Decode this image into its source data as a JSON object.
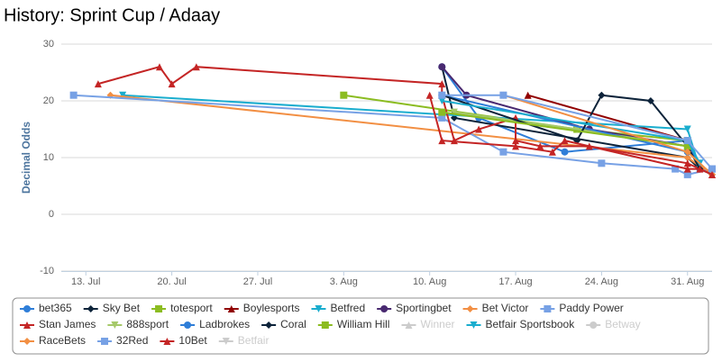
{
  "chart_data": {
    "type": "line",
    "title": "History: Sprint Cup / Adaay",
    "y_label": "Decimal Odds",
    "xlim": [
      "07-11",
      "09-02"
    ],
    "xticks": [
      {
        "value": "07-13",
        "label": "13. Jul"
      },
      {
        "value": "07-20",
        "label": "20. Jul"
      },
      {
        "value": "07-27",
        "label": "27. Jul"
      },
      {
        "value": "08-03",
        "label": "3. Aug"
      },
      {
        "value": "08-10",
        "label": "10. Aug"
      },
      {
        "value": "08-17",
        "label": "17. Aug"
      },
      {
        "value": "08-24",
        "label": "24. Aug"
      },
      {
        "value": "08-31",
        "label": "31. Aug"
      }
    ],
    "ylim": [
      -10,
      30
    ],
    "yticks": [
      -10,
      0,
      10,
      20,
      30
    ],
    "grid": true,
    "legend": "bottom",
    "series": [
      {
        "name": "bet365",
        "color": "#2f7ed8",
        "marker": "circle",
        "x": [
          "08-11",
          "08-14",
          "08-21",
          "08-31",
          "09-01"
        ],
        "values": [
          26,
          17,
          11,
          13,
          8
        ]
      },
      {
        "name": "Sky Bet",
        "color": "#0d233a",
        "marker": "diamond",
        "x": [
          "08-11",
          "08-12",
          "08-31",
          "09-01",
          "09-02"
        ],
        "values": [
          26,
          17,
          10,
          8,
          7
        ]
      },
      {
        "name": "totesport",
        "color": "#8bbc21",
        "marker": "square",
        "x": [
          "08-03",
          "08-22",
          "08-31"
        ],
        "values": [
          21,
          15,
          13
        ]
      },
      {
        "name": "Boylesports",
        "color": "#910000",
        "marker": "triangle",
        "x": [
          "08-18",
          "08-31"
        ],
        "values": [
          21,
          13
        ]
      },
      {
        "name": "Betfred",
        "color": "#1aadce",
        "marker": "triangle-down",
        "x": [
          "07-16",
          "08-31",
          "09-01"
        ],
        "values": [
          21,
          15,
          8
        ]
      },
      {
        "name": "Sportingbet",
        "color": "#492970",
        "marker": "circle",
        "x": [
          "08-11",
          "08-13",
          "08-23",
          "08-31"
        ],
        "values": [
          26,
          21,
          15,
          12
        ]
      },
      {
        "name": "Bet Victor",
        "color": "#f28f43",
        "marker": "diamond",
        "x": [
          "07-15",
          "08-31",
          "09-02"
        ],
        "values": [
          21,
          10,
          7
        ]
      },
      {
        "name": "Paddy Power",
        "color": "#77a1e5",
        "marker": "square",
        "x": [
          "07-12",
          "08-11",
          "08-16",
          "08-24",
          "08-30",
          "08-31",
          "09-02"
        ],
        "values": [
          21,
          17,
          11,
          9,
          8,
          7,
          8
        ]
      },
      {
        "name": "Stan James",
        "color": "#c42525",
        "marker": "triangle",
        "x": [
          "07-14",
          "07-19",
          "07-20",
          "07-22",
          "08-11",
          "08-11",
          "08-12",
          "08-14",
          "08-17",
          "08-17",
          "08-19",
          "08-23",
          "08-31",
          "09-02"
        ],
        "values": [
          23,
          26,
          23,
          26,
          23,
          21,
          13,
          15,
          17,
          13,
          12,
          12,
          9,
          7
        ]
      },
      {
        "name": "888sport",
        "color": "#a6c96a",
        "marker": "triangle-down",
        "x": [
          "08-12",
          "08-22",
          "08-31"
        ],
        "values": [
          18,
          15,
          12
        ]
      },
      {
        "name": "Ladbrokes",
        "color": "#2f7ed8",
        "marker": "circle",
        "x": [
          "08-11",
          "08-31"
        ],
        "values": [
          21,
          11
        ]
      },
      {
        "name": "Coral",
        "color": "#0d233a",
        "marker": "diamond",
        "x": [
          "08-11",
          "08-22",
          "08-24",
          "08-28",
          "08-31",
          "09-01"
        ],
        "values": [
          21,
          13,
          21,
          20,
          12,
          8
        ]
      },
      {
        "name": "William Hill",
        "color": "#8bbc21",
        "marker": "square",
        "x": [
          "08-11",
          "08-31"
        ],
        "values": [
          18,
          12
        ]
      },
      {
        "name": "Winner",
        "color": "#910000",
        "marker": "triangle",
        "visible": false
      },
      {
        "name": "Betfair Sportsbook",
        "color": "#1aadce",
        "marker": "triangle-down",
        "x": [
          "08-11",
          "08-31",
          "09-01"
        ],
        "values": [
          20,
          13,
          9
        ]
      },
      {
        "name": "Betway",
        "color": "#492970",
        "marker": "circle",
        "visible": false
      },
      {
        "name": "RaceBets",
        "color": "#f28f43",
        "marker": "diamond",
        "x": [
          "08-16",
          "08-31",
          "09-02"
        ],
        "values": [
          21,
          11,
          7
        ]
      },
      {
        "name": "32Red",
        "color": "#77a1e5",
        "marker": "square",
        "x": [
          "08-11",
          "08-16",
          "08-31",
          "09-02"
        ],
        "values": [
          21,
          21,
          13,
          8
        ]
      },
      {
        "name": "10Bet",
        "color": "#c42525",
        "marker": "triangle",
        "x": [
          "08-10",
          "08-11",
          "08-17",
          "08-20",
          "08-21",
          "08-31",
          "09-01",
          "09-02"
        ],
        "values": [
          21,
          13,
          12,
          11,
          13,
          8,
          8,
          7
        ]
      },
      {
        "name": "Betfair",
        "color": "#a6c96a",
        "marker": "triangle-down",
        "visible": false
      }
    ]
  }
}
